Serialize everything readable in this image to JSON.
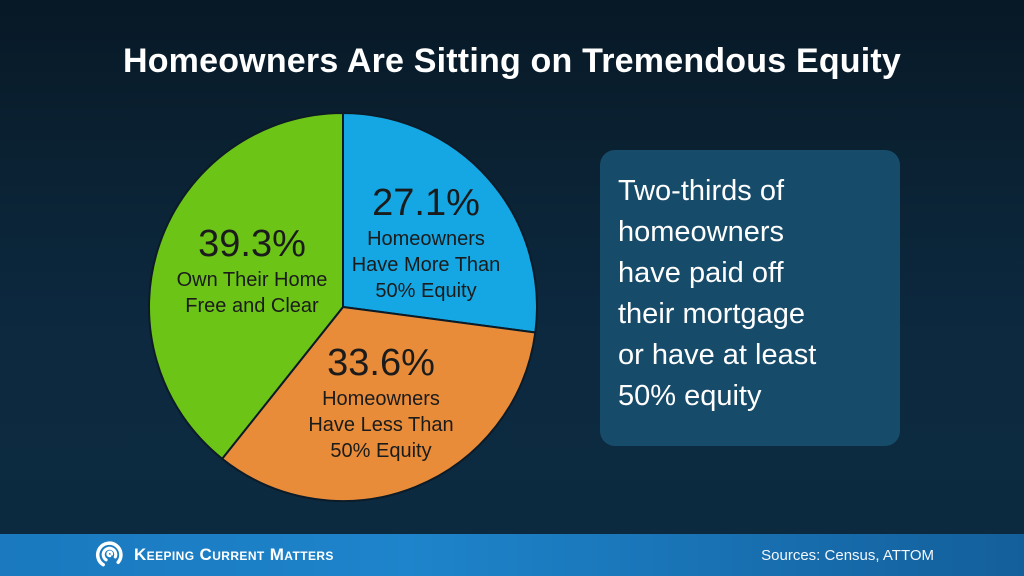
{
  "title": "Homeowners Are Sitting on Tremendous Equity",
  "chart_data": {
    "type": "pie",
    "title": "Homeowners Are Sitting on Tremendous Equity",
    "start_angle_deg": -90,
    "direction": "clockwise",
    "stroke_color": "#0c1b28",
    "slices": [
      {
        "label": "Homeowners Have More Than 50% Equity",
        "value_pct": 27.1,
        "display_value": "27.1%",
        "display_label": "Homeowners\nHave More Than\n50% Equity",
        "color": "#14a7e3"
      },
      {
        "label": "Homeowners Have Less Than 50% Equity",
        "value_pct": 33.6,
        "display_value": "33.6%",
        "display_label": "Homeowners\nHave Less Than\n50% Equity",
        "color": "#e88c3a"
      },
      {
        "label": "Own Their Home Free and Clear",
        "value_pct": 39.3,
        "display_value": "39.3%",
        "display_label": "Own Their Home\nFree and Clear",
        "color": "#6cc417"
      }
    ]
  },
  "callout": {
    "text": "Two-thirds of\nhomeowners\nhave paid off\ntheir mortgage\nor have at least\n50% equity",
    "background_color": "#174b6a"
  },
  "footer": {
    "brand": "Keeping Current Matters",
    "sources": "Sources: Census, ATTOM",
    "bar_color": "#1e84cb"
  }
}
